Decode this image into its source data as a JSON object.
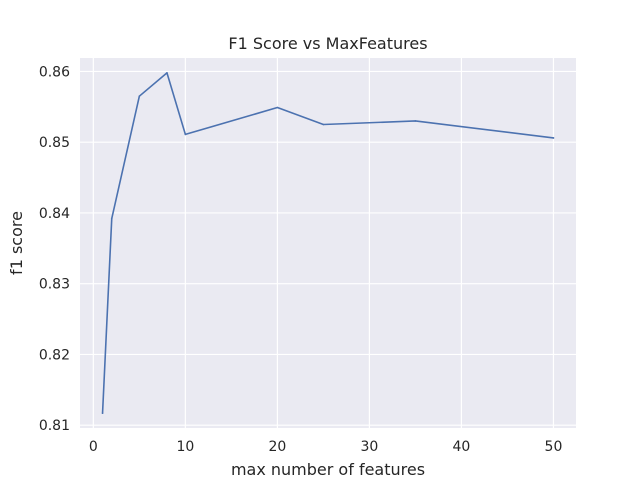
{
  "chart_data": {
    "type": "line",
    "title": "F1 Score vs MaxFeatures",
    "xlabel": "max number of features",
    "ylabel": "f1 score",
    "xlim": [
      -1.45,
      52.45
    ],
    "ylim": [
      0.8096,
      0.8619
    ],
    "xticks": [
      0,
      10,
      20,
      30,
      40,
      50
    ],
    "xtick_labels": [
      "0",
      "10",
      "20",
      "30",
      "40",
      "50"
    ],
    "yticks": [
      0.81,
      0.82,
      0.83,
      0.84,
      0.85,
      0.86
    ],
    "ytick_labels": [
      "0.81",
      "0.82",
      "0.83",
      "0.84",
      "0.85",
      "0.86"
    ],
    "grid": true,
    "series": [
      {
        "color": "#4c72b0",
        "x": [
          1,
          2,
          5,
          8,
          10,
          20,
          25,
          35,
          50
        ],
        "y": [
          0.8117,
          0.8392,
          0.8565,
          0.8598,
          0.8511,
          0.8549,
          0.8525,
          0.853,
          0.8506
        ]
      }
    ]
  }
}
